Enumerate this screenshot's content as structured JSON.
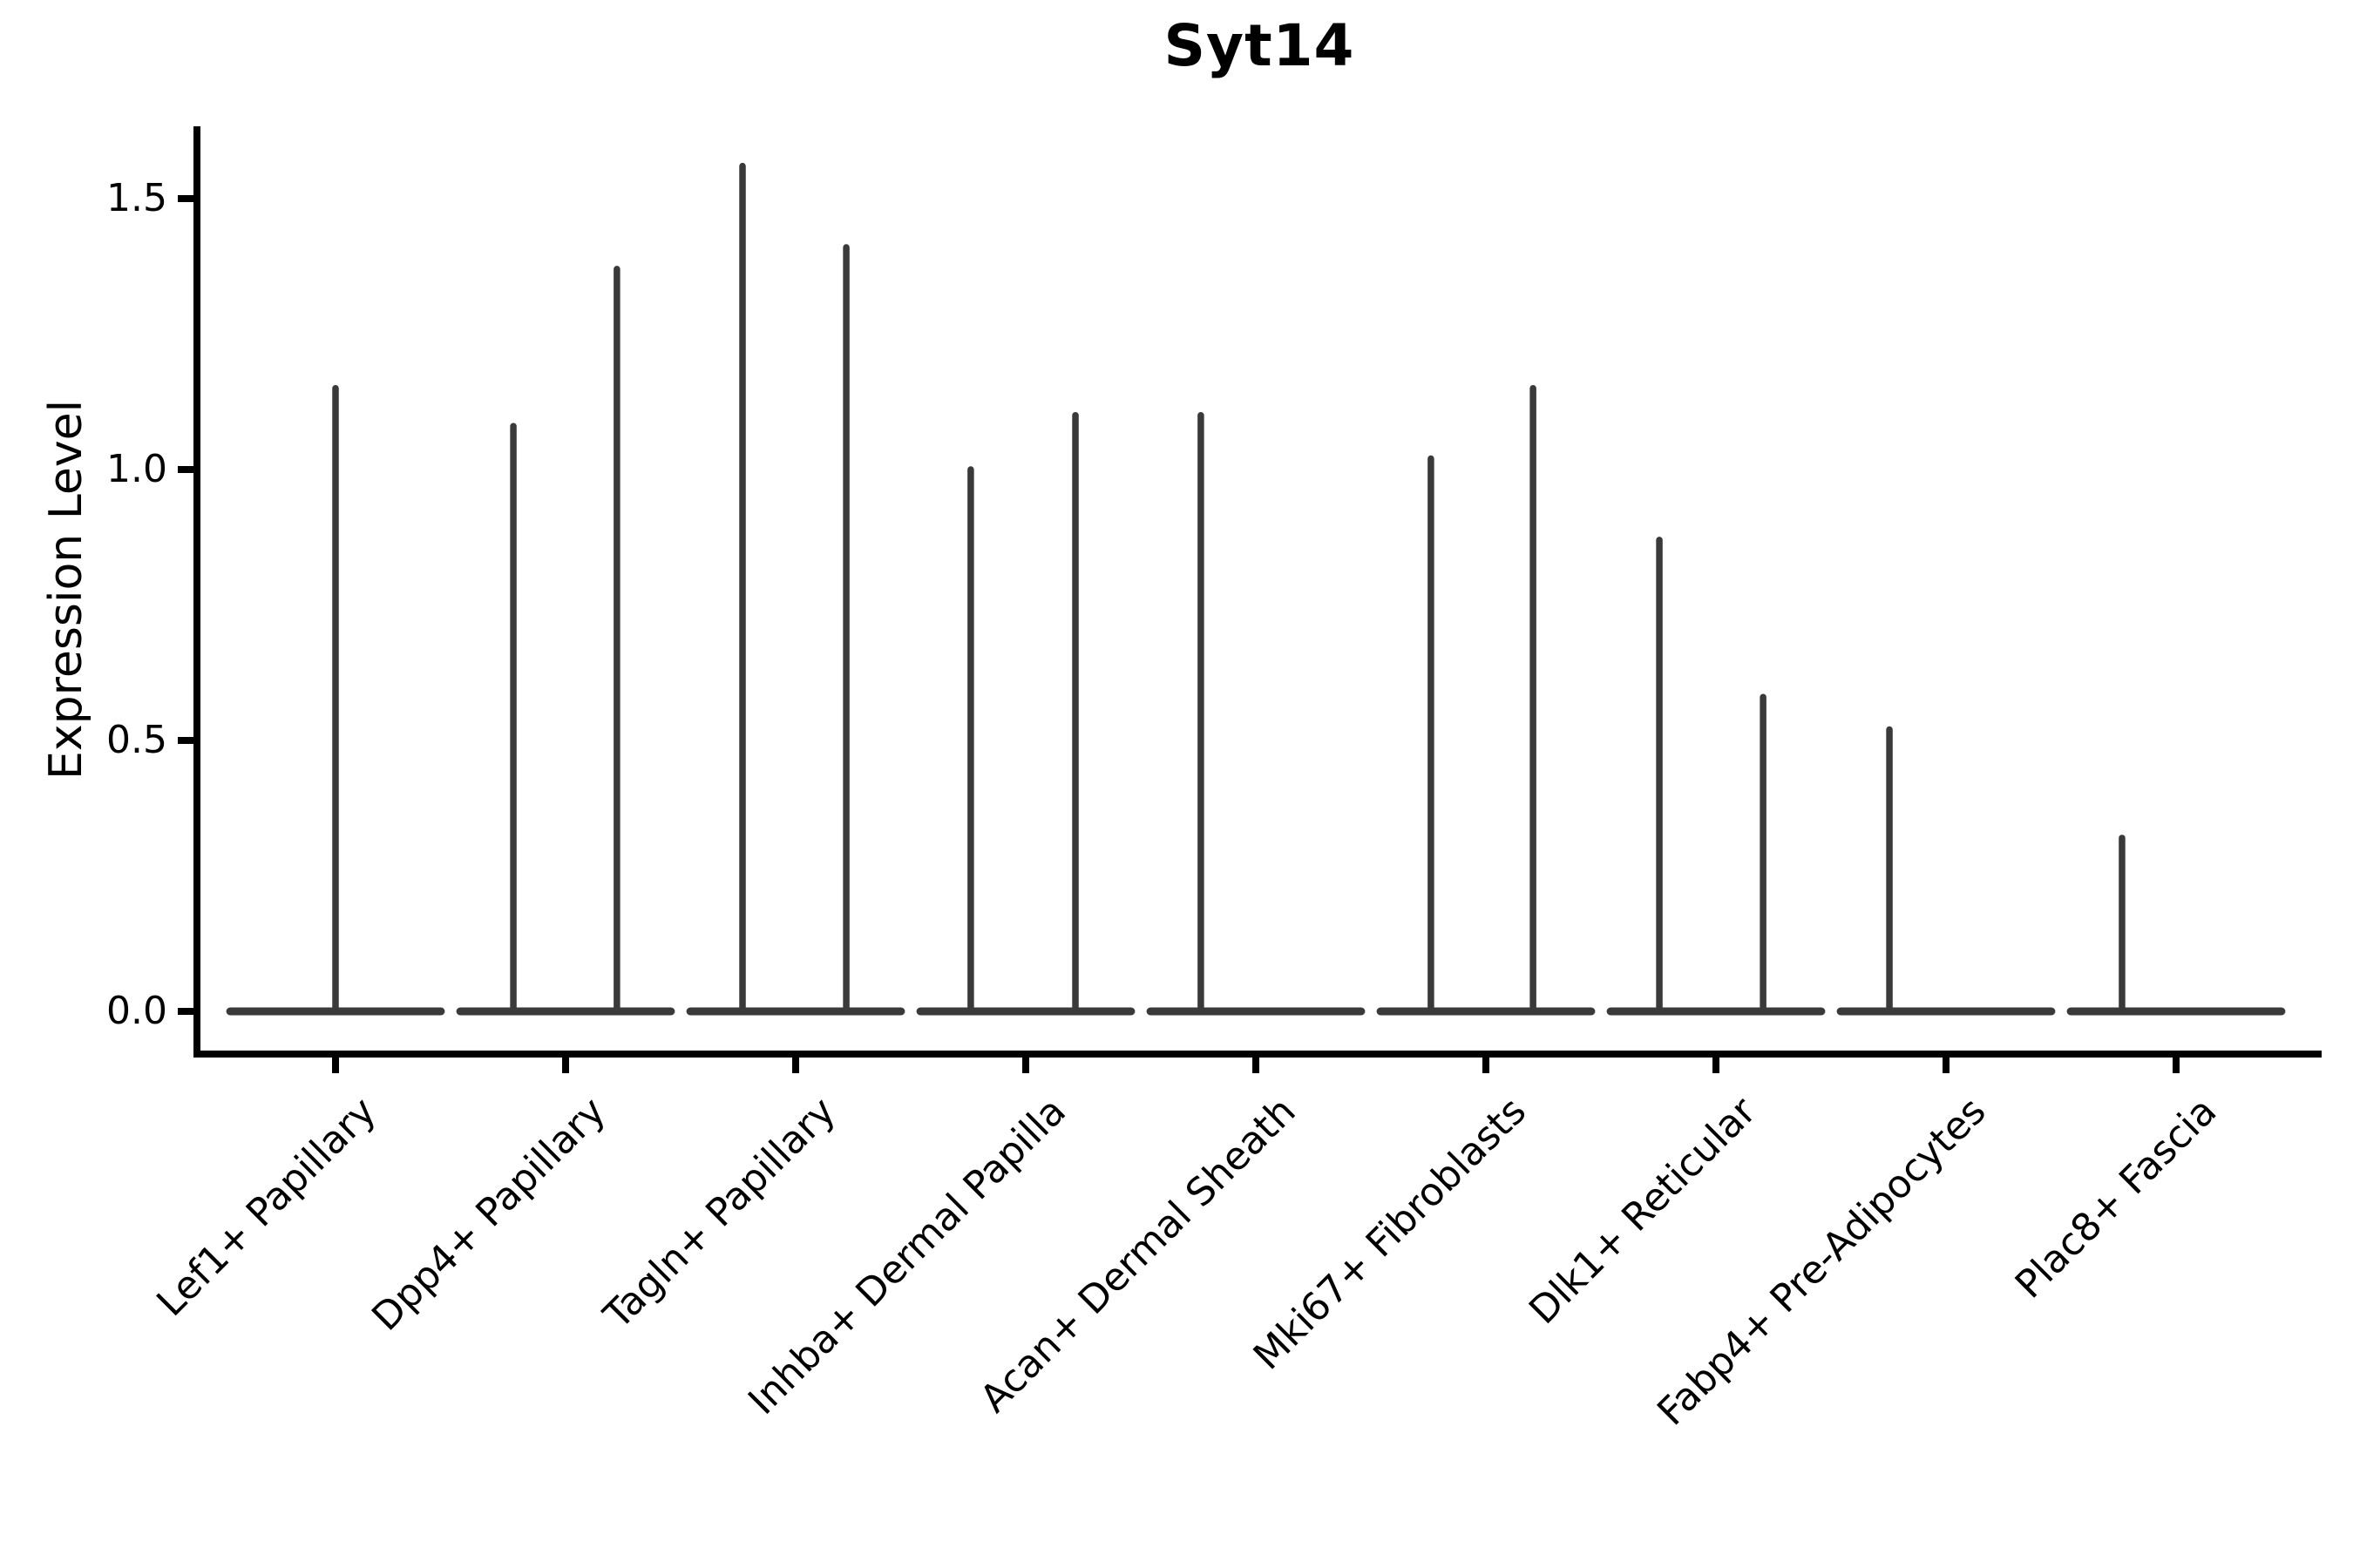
{
  "chart_data": {
    "type": "violin",
    "title": "Syt14",
    "ylabel": "Expression Level",
    "xlabel": "",
    "ylim": [
      -0.08,
      1.63
    ],
    "grid": false,
    "legend": null,
    "ytick_labels": [
      "0.0",
      "0.5",
      "1.0",
      "1.5"
    ],
    "ytick_values": [
      0.0,
      0.5,
      1.0,
      1.5
    ],
    "categories": [
      "Lef1+ Papillary",
      "Dpp4+ Papillary",
      "Tagln+ Papillary",
      "Inhba+ Dermal Papilla",
      "Acan+ Dermal Sheath",
      "Mki67+ Fibroblasts",
      "Dlk1+ Reticular",
      "Fabp4+ Pre-Adipocytes",
      "Plac8+ Fascia"
    ],
    "violins": [
      {
        "category": "Lef1+ Papillary",
        "spikes": [
          {
            "offset": 0.0,
            "max": 1.15
          }
        ]
      },
      {
        "category": "Dpp4+ Papillary",
        "spikes": [
          {
            "offset": -0.227,
            "max": 1.08
          },
          {
            "offset": 0.223,
            "max": 1.37
          }
        ]
      },
      {
        "category": "Tagln+ Papillary",
        "spikes": [
          {
            "offset": -0.231,
            "max": 1.56
          },
          {
            "offset": 0.22,
            "max": 1.41
          }
        ]
      },
      {
        "category": "Inhba+ Dermal Papilla",
        "spikes": [
          {
            "offset": -0.239,
            "max": 1.0
          },
          {
            "offset": 0.216,
            "max": 1.1
          }
        ]
      },
      {
        "category": "Acan+ Dermal Sheath",
        "spikes": [
          {
            "offset": -0.239,
            "max": 1.1
          }
        ]
      },
      {
        "category": "Mki67+ Fibroblasts",
        "spikes": [
          {
            "offset": -0.239,
            "max": 1.02
          },
          {
            "offset": 0.205,
            "max": 1.15
          }
        ]
      },
      {
        "category": "Dlk1+ Reticular",
        "spikes": [
          {
            "offset": -0.246,
            "max": 0.87
          },
          {
            "offset": 0.205,
            "max": 0.58
          }
        ]
      },
      {
        "category": "Fabp4+ Pre-Adipocytes",
        "spikes": [
          {
            "offset": -0.246,
            "max": 0.52
          }
        ]
      },
      {
        "category": "Plac8+ Fascia",
        "spikes": [
          {
            "offset": -0.235,
            "max": 0.32
          }
        ]
      }
    ],
    "baseline_halfwidth": 0.458,
    "baseline_value": 0.0,
    "colors": {
      "violin": "#3a3a3a",
      "axis": "#000000",
      "text": "#000000",
      "background": "#ffffff"
    }
  }
}
